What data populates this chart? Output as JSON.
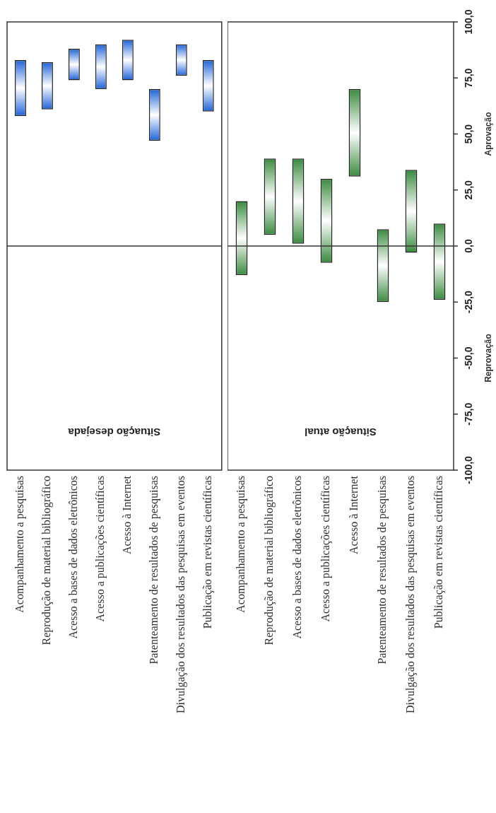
{
  "chart_data": [
    {
      "type": "bar",
      "title": "Situação desejada",
      "categories": [
        "Acompanhamento a pesquisas",
        "Reprodução de material bibliográfico",
        "Acesso a bases de dados eletrônicos",
        "Acesso a publicações científicas",
        "Acesso à Internet",
        "Patenteamento de resultados de pesquisas",
        "Divulgação dos resultados das pesquisas em eventos",
        "Publicação em revistas científicas"
      ],
      "base": [
        58,
        61,
        74,
        70,
        74,
        47,
        76,
        60
      ],
      "values": [
        25,
        21,
        14,
        20,
        18,
        23,
        14,
        23
      ],
      "color": "#1f62d8",
      "ylim": [
        -100,
        100
      ],
      "ref_lines": [
        {
          "axis": "y",
          "value": 0
        }
      ],
      "tick_labels": "x",
      "grid": false,
      "legend": false
    },
    {
      "type": "bar",
      "title": "Situação atual",
      "categories": [
        "Acompanhamento a pesquisas",
        "Reprodução de material bibliográfico",
        "Acesso a bases de dados eletrônicos",
        "Acesso a publicações científicas",
        "Acesso à Internet",
        "Patenteamento de resultados de pesquisas",
        "Divulgação dos resultados das pesquisas em eventos",
        "Publicação em revistas científicas"
      ],
      "base": [
        -13,
        5,
        1,
        -7.5,
        31,
        -25,
        -3,
        -24
      ],
      "values": [
        33,
        34,
        38,
        37.5,
        39,
        32.5,
        37,
        34
      ],
      "color": "#3a8a3e",
      "ylim": [
        -100,
        100
      ],
      "yticks": [
        {
          "value": -100,
          "label": "-100,0"
        },
        {
          "value": -75,
          "label": "-75,0"
        },
        {
          "value": -50,
          "label": "-50,0"
        },
        {
          "value": -25,
          "label": "-25,0"
        },
        {
          "value": 0,
          "label": "0,0"
        },
        {
          "value": 25,
          "label": "25,0"
        },
        {
          "value": 50,
          "label": "50,0"
        },
        {
          "value": 75,
          "label": "75,0"
        },
        {
          "value": 100,
          "label": "100,0"
        }
      ],
      "ref_lines": [
        {
          "axis": "y",
          "value": 0
        }
      ],
      "annotations": [
        "Aprovação",
        "Reprovação"
      ],
      "grid": false,
      "legend": false
    }
  ]
}
